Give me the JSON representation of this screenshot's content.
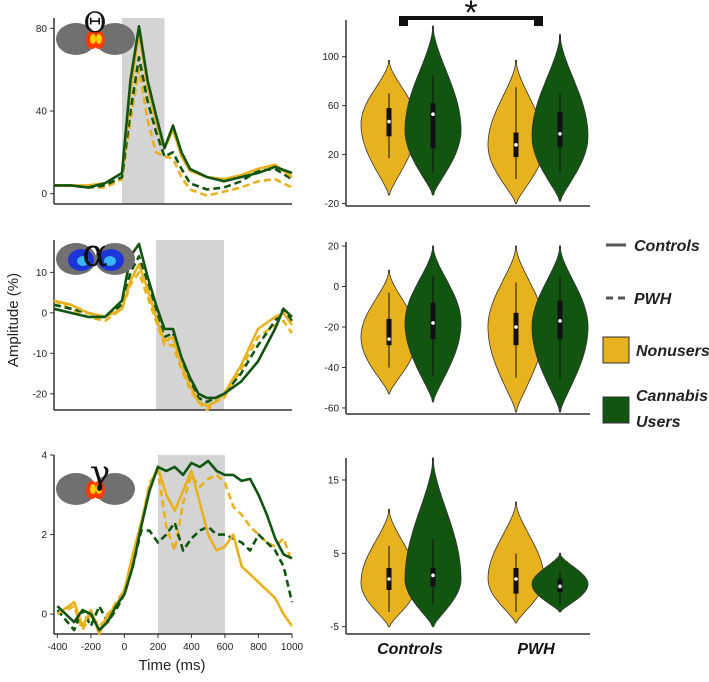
{
  "colors": {
    "nonusers": "#E8B21F",
    "cannabis": "#115511",
    "window": "#d4d4d4",
    "brain": "#707070"
  },
  "labels": {
    "ylabel": "Amplitude (%)",
    "xlabel": "Time (ms)",
    "sig_star": "*"
  },
  "legend": {
    "controls": "Controls",
    "pwh": "PWH",
    "nonusers": "Nonusers",
    "cannabis_line1": "Cannabis",
    "cannabis_line2": "Users"
  },
  "panel_symbols": [
    "Θ",
    "α",
    "γ"
  ],
  "brain_icons": [
    {
      "band": "theta",
      "activation": "red"
    },
    {
      "band": "alpha",
      "activation": "blue"
    },
    {
      "band": "gamma",
      "activation": "red"
    }
  ],
  "chart_data": [
    {
      "type": "line",
      "panel": "theta-timecourse",
      "title": "Θ",
      "xlabel": "",
      "ylabel": "",
      "xlim": [
        -400,
        1000
      ],
      "ylim": [
        -5,
        85
      ],
      "xticks": [],
      "yticks": [
        0,
        40,
        80
      ],
      "shaded_window": [
        0,
        250
      ],
      "x": [
        -400,
        -300,
        -200,
        -100,
        0,
        50,
        100,
        150,
        200,
        250,
        300,
        350,
        400,
        500,
        600,
        700,
        800,
        900,
        1000
      ],
      "series": [
        {
          "group": "Controls",
          "subgroup": "Cannabis Users",
          "style": "solid",
          "values": [
            4,
            4,
            3,
            5,
            10,
            55,
            81,
            55,
            38,
            22,
            33,
            20,
            12,
            8,
            6,
            8,
            10,
            13,
            10
          ]
        },
        {
          "group": "Controls",
          "subgroup": "Nonusers",
          "style": "solid",
          "values": [
            4,
            4,
            4,
            5,
            10,
            50,
            78,
            52,
            35,
            22,
            31,
            18,
            11,
            8,
            7,
            9,
            12,
            14,
            8
          ]
        },
        {
          "group": "PWH",
          "subgroup": "Cannabis Users",
          "style": "dashed",
          "values": [
            4,
            4,
            3,
            4,
            8,
            40,
            66,
            45,
            30,
            18,
            20,
            12,
            5,
            2,
            3,
            6,
            11,
            12,
            7
          ]
        },
        {
          "group": "PWH",
          "subgroup": "Nonusers",
          "style": "dashed",
          "values": [
            4,
            4,
            3,
            3,
            7,
            35,
            60,
            36,
            20,
            18,
            17,
            8,
            2,
            -1,
            1,
            3,
            6,
            7,
            3
          ]
        }
      ]
    },
    {
      "type": "line",
      "panel": "alpha-timecourse",
      "title": "α",
      "xlabel": "",
      "ylabel": "",
      "xlim": [
        -400,
        1000
      ],
      "ylim": [
        -24,
        18
      ],
      "xticks": [],
      "yticks": [
        -20,
        -10,
        0,
        10
      ],
      "shaded_window": [
        200,
        600
      ],
      "x": [
        -400,
        -300,
        -200,
        -100,
        0,
        50,
        100,
        150,
        200,
        250,
        300,
        350,
        400,
        450,
        500,
        550,
        600,
        700,
        800,
        900,
        950,
        1000
      ],
      "series": [
        {
          "group": "Controls",
          "subgroup": "Cannabis Users",
          "style": "solid",
          "values": [
            1,
            0,
            -1,
            -1,
            3,
            14,
            17,
            9,
            2,
            -4,
            -4,
            -11,
            -16,
            -20,
            -21,
            -21,
            -20,
            -17,
            -12,
            -4,
            1,
            -1
          ]
        },
        {
          "group": "Controls",
          "subgroup": "Nonusers",
          "style": "solid",
          "values": [
            3,
            2,
            0,
            -1,
            1,
            8,
            12,
            6,
            -1,
            -7,
            -6,
            -13,
            -18,
            -22,
            -23,
            -22,
            -20,
            -13,
            -4,
            -1,
            0,
            -3
          ]
        },
        {
          "group": "PWH",
          "subgroup": "Cannabis Users",
          "style": "dashed",
          "values": [
            2,
            1,
            0,
            -1,
            2,
            10,
            14,
            7,
            0,
            -6,
            -5,
            -12,
            -17,
            -21,
            -22,
            -21,
            -20,
            -15,
            -8,
            -2,
            1,
            -2
          ]
        },
        {
          "group": "PWH",
          "subgroup": "Nonusers",
          "style": "dashed",
          "values": [
            3,
            1,
            -1,
            -2,
            1,
            7,
            10,
            4,
            -2,
            -8,
            -8,
            -14,
            -19,
            -22,
            -24,
            -22,
            -21,
            -14,
            -6,
            -3,
            -2,
            -5
          ]
        }
      ]
    },
    {
      "type": "line",
      "panel": "gamma-timecourse",
      "title": "γ",
      "xlabel": "Time (ms)",
      "ylabel": "",
      "xlim": [
        -420,
        1000
      ],
      "ylim": [
        -0.5,
        4
      ],
      "xticks": [
        -400,
        -200,
        0,
        200,
        400,
        600,
        800,
        1000
      ],
      "yticks": [
        0,
        2,
        4
      ],
      "shaded_window": [
        200,
        600
      ],
      "x": [
        -400,
        -300,
        -250,
        -200,
        -150,
        -100,
        -50,
        0,
        50,
        100,
        150,
        200,
        250,
        300,
        350,
        400,
        450,
        500,
        550,
        600,
        650,
        700,
        750,
        800,
        850,
        900,
        950,
        1000
      ],
      "series": [
        {
          "group": "Controls",
          "subgroup": "Cannabis Users",
          "style": "solid",
          "values": [
            0.2,
            -0.2,
            0.1,
            0.0,
            -0.4,
            -0.2,
            0.2,
            0.5,
            1.2,
            2.2,
            3.1,
            3.7,
            3.6,
            3.7,
            3.5,
            3.8,
            3.7,
            3.85,
            3.6,
            3.5,
            3.5,
            3.35,
            3.4,
            3.0,
            2.5,
            1.9,
            1.5,
            1.4
          ]
        },
        {
          "group": "Controls",
          "subgroup": "Nonusers",
          "style": "solid",
          "values": [
            0.0,
            0.3,
            -0.3,
            0.1,
            -0.5,
            0.0,
            0.2,
            0.6,
            1.5,
            2.3,
            3.2,
            3.7,
            3.0,
            2.6,
            3.1,
            3.6,
            2.8,
            2.0,
            1.6,
            1.7,
            2.0,
            1.2,
            1.0,
            0.8,
            0.6,
            0.4,
            0.0,
            -0.3
          ]
        },
        {
          "group": "PWH",
          "subgroup": "Cannabis Users",
          "style": "dashed",
          "values": [
            0.1,
            -0.4,
            0.1,
            -0.3,
            0.2,
            -0.2,
            0.1,
            0.5,
            1.2,
            2.1,
            2.1,
            1.8,
            2.0,
            2.3,
            1.6,
            1.9,
            2.1,
            2.2,
            2.0,
            2.0,
            1.9,
            1.8,
            1.6,
            2.0,
            1.8,
            1.6,
            1.2,
            0.3
          ]
        },
        {
          "group": "PWH",
          "subgroup": "Nonusers",
          "style": "dashed",
          "values": [
            0.0,
            0.2,
            -0.4,
            0.0,
            -0.3,
            -0.1,
            0.3,
            0.6,
            1.4,
            2.2,
            3.3,
            3.6,
            2.2,
            1.6,
            2.8,
            3.5,
            3.2,
            3.4,
            3.5,
            3.3,
            2.7,
            2.5,
            2.2,
            2.0,
            1.8,
            1.7,
            1.9,
            1.3
          ]
        }
      ]
    },
    {
      "type": "violin",
      "panel": "theta-violins",
      "ylim": [
        -22,
        130
      ],
      "yticks": [
        -20,
        20,
        60,
        100
      ],
      "groups": [
        "Controls",
        "PWH"
      ],
      "significance": {
        "between": [
          "Controls",
          "PWH"
        ],
        "label": "*"
      },
      "violins": [
        {
          "group": "Controls",
          "subgroup": "Nonusers",
          "min": -13,
          "max": 97,
          "q1": 35,
          "median": 47,
          "q3": 58,
          "whisker_low": 17,
          "whisker_high": 70,
          "mode": 45
        },
        {
          "group": "Controls",
          "subgroup": "Cannabis Users",
          "min": -13,
          "max": 125,
          "q1": 25,
          "median": 53,
          "q3": 62,
          "whisker_low": 5,
          "whisker_high": 85,
          "mode": 40
        },
        {
          "group": "PWH",
          "subgroup": "Nonusers",
          "min": -20,
          "max": 97,
          "q1": 18,
          "median": 28,
          "q3": 38,
          "whisker_low": 0,
          "whisker_high": 75,
          "mode": 28
        },
        {
          "group": "PWH",
          "subgroup": "Cannabis Users",
          "min": -18,
          "max": 118,
          "q1": 26,
          "median": 37,
          "q3": 55,
          "whisker_low": 5,
          "whisker_high": 70,
          "mode": 35
        }
      ]
    },
    {
      "type": "violin",
      "panel": "alpha-violins",
      "ylim": [
        -63,
        22
      ],
      "yticks": [
        -60,
        -40,
        -20,
        0,
        20
      ],
      "groups": [
        "Controls",
        "PWH"
      ],
      "violins": [
        {
          "group": "Controls",
          "subgroup": "Nonusers",
          "min": -53,
          "max": 8,
          "q1": -29,
          "median": -26,
          "q3": -16,
          "whisker_low": -40,
          "whisker_high": -3,
          "mode": -25
        },
        {
          "group": "Controls",
          "subgroup": "Cannabis Users",
          "min": -57,
          "max": 20,
          "q1": -26,
          "median": -18,
          "q3": -8,
          "whisker_low": -44,
          "whisker_high": 5,
          "mode": -18
        },
        {
          "group": "PWH",
          "subgroup": "Nonusers",
          "min": -62,
          "max": 20,
          "q1": -29,
          "median": -20,
          "q3": -13,
          "whisker_low": -45,
          "whisker_high": 2,
          "mode": -20
        },
        {
          "group": "PWH",
          "subgroup": "Cannabis Users",
          "min": -62,
          "max": 20,
          "q1": -26,
          "median": -17,
          "q3": -7,
          "whisker_low": -46,
          "whisker_high": 5,
          "mode": -20
        }
      ]
    },
    {
      "type": "violin",
      "panel": "gamma-violins",
      "ylim": [
        -6,
        18
      ],
      "yticks": [
        -5,
        5,
        15
      ],
      "groups": [
        "Controls",
        "PWH"
      ],
      "violins": [
        {
          "group": "Controls",
          "subgroup": "Nonusers",
          "min": -5,
          "max": 11,
          "q1": 0,
          "median": 1.5,
          "q3": 3,
          "whisker_low": -3,
          "whisker_high": 6,
          "mode": 1
        },
        {
          "group": "Controls",
          "subgroup": "Cannabis Users",
          "min": -5,
          "max": 18,
          "q1": 0.5,
          "median": 2,
          "q3": 3,
          "whisker_low": -2,
          "whisker_high": 7,
          "mode": 1.5
        },
        {
          "group": "PWH",
          "subgroup": "Nonusers",
          "min": -4.5,
          "max": 12,
          "q1": -0.5,
          "median": 1.5,
          "q3": 3,
          "whisker_low": -3,
          "whisker_high": 5,
          "mode": 1.5
        },
        {
          "group": "PWH",
          "subgroup": "Cannabis Users",
          "min": -3,
          "max": 5,
          "q1": -0.3,
          "median": 0.5,
          "q3": 1.5,
          "whisker_low": -2,
          "whisker_high": 2.5,
          "mode": 0.8
        }
      ]
    }
  ]
}
